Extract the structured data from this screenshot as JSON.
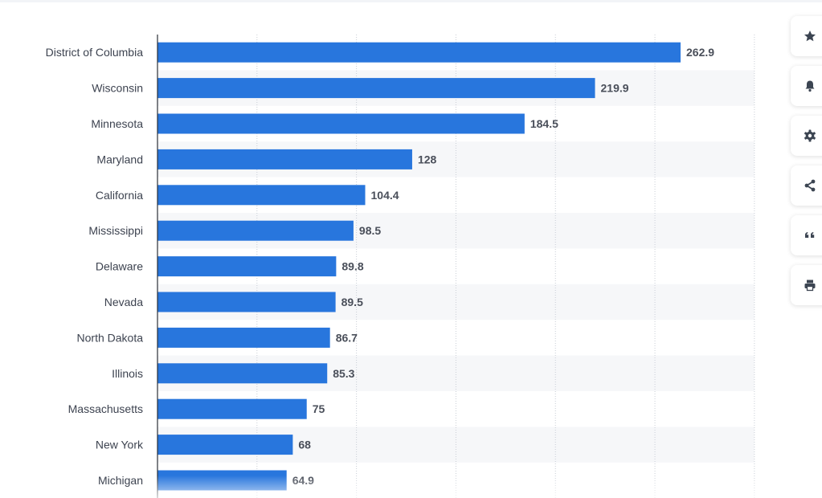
{
  "chart_data": {
    "type": "bar",
    "orientation": "horizontal",
    "categories": [
      "District of Columbia",
      "Wisconsin",
      "Minnesota",
      "Maryland",
      "California",
      "Mississippi",
      "Delaware",
      "Nevada",
      "North Dakota",
      "Illinois",
      "Massachusetts",
      "New York",
      "Michigan"
    ],
    "values": [
      262.9,
      219.9,
      184.5,
      128,
      104.4,
      98.5,
      89.8,
      89.5,
      86.7,
      85.3,
      75,
      68,
      64.9
    ],
    "value_labels": [
      "262.9",
      "219.9",
      "184.5",
      "128",
      "104.4",
      "98.5",
      "89.8",
      "89.5",
      "86.7",
      "85.3",
      "75",
      "68",
      "64.9"
    ],
    "xlim": [
      0,
      300
    ],
    "grid": true,
    "bar_color": "#2876dd",
    "stripe_color": "#f6f7f9"
  },
  "toolbar": {
    "buttons": [
      {
        "name": "star-button",
        "icon": "star-icon"
      },
      {
        "name": "notification-button",
        "icon": "bell-icon"
      },
      {
        "name": "settings-button",
        "icon": "gear-icon"
      },
      {
        "name": "share-button",
        "icon": "share-icon"
      },
      {
        "name": "cite-button",
        "icon": "quote-icon"
      },
      {
        "name": "print-button",
        "icon": "print-icon"
      }
    ],
    "icon_color": "#3c4552"
  }
}
